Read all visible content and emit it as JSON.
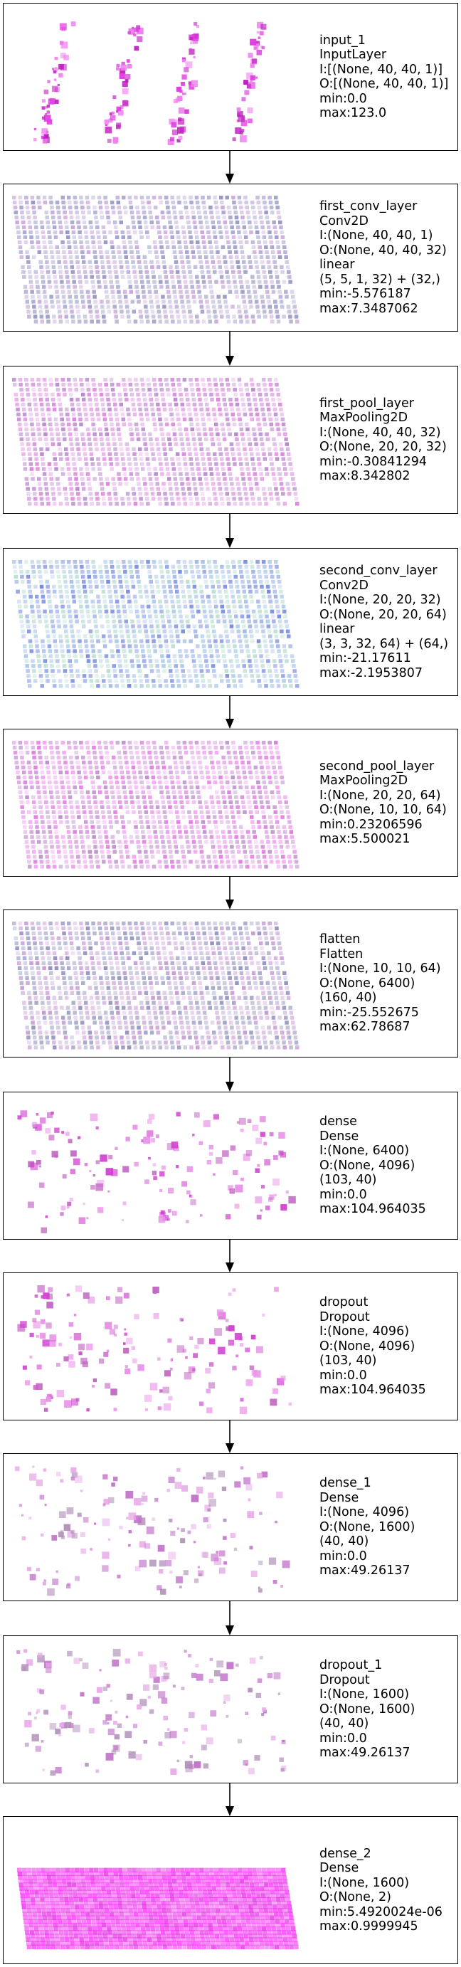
{
  "layers": [
    {
      "lines": [
        "input_1",
        "InputLayer",
        "I:[(None, 40, 40, 1)]",
        "O:[(None, 40, 40, 1)]",
        "min:0.0",
        "max:123.0"
      ],
      "viz": "sparse-strips",
      "palette": [
        "#e040e0",
        "#c020c0",
        "#f080f0"
      ]
    },
    {
      "lines": [
        "first_conv_layer",
        "Conv2D",
        "I:(None, 40, 40, 1)",
        "O:(None, 40, 40, 32)",
        "linear",
        "(5, 5, 1, 32) + (32,)",
        "min:-5.576187",
        "max:7.3487062"
      ],
      "viz": "dense-grid",
      "palette": [
        "#9a9ac8",
        "#b7a6d6",
        "#c7a0d8",
        "#8e8ec0"
      ]
    },
    {
      "lines": [
        "first_pool_layer",
        "MaxPooling2D",
        "I:(None, 40, 40, 32)",
        "O:(None, 20, 20, 32)",
        "min:-0.30841294",
        "max:8.342802"
      ],
      "viz": "dense-grid",
      "palette": [
        "#d87ad8",
        "#c58ad6",
        "#e6a8e6",
        "#b080c8"
      ]
    },
    {
      "lines": [
        "second_conv_layer",
        "Conv2D",
        "I:(None, 20, 20, 32)",
        "O:(None, 20, 20, 64)",
        "linear",
        "(3, 3, 32, 64) + (64,)",
        "min:-21.17611",
        "max:-2.1953807"
      ],
      "viz": "dense-grid",
      "palette": [
        "#a8c8e8",
        "#b8dcd0",
        "#9ab0e8",
        "#6a7fe0"
      ]
    },
    {
      "lines": [
        "second_pool_layer",
        "MaxPooling2D",
        "I:(None, 20, 20, 64)",
        "O:(None, 10, 10, 64)",
        "min:0.23206596",
        "max:5.500021"
      ],
      "viz": "dense-grid",
      "palette": [
        "#e070e0",
        "#d090d8",
        "#b888c8",
        "#f0a0f0"
      ]
    },
    {
      "lines": [
        "flatten",
        "Flatten",
        "I:(None, 10, 10, 64)",
        "O:(None, 6400)",
        "(160, 40)",
        "min:-25.552675",
        "max:62.78687"
      ],
      "viz": "dense-grid",
      "palette": [
        "#a0a0c8",
        "#c090d0",
        "#d6b0e0",
        "#8888b8"
      ]
    },
    {
      "lines": [
        "dense",
        "Dense",
        "I:(None, 6400)",
        "O:(None, 4096)",
        "(103, 40)",
        "min:0.0",
        "max:104.964035"
      ],
      "viz": "scatter",
      "palette": [
        "#d040d0",
        "#c060c0",
        "#e890e8"
      ]
    },
    {
      "lines": [
        "dropout",
        "Dropout",
        "I:(None, 4096)",
        "O:(None, 4096)",
        "(103, 40)",
        "min:0.0",
        "max:104.964035"
      ],
      "viz": "scatter",
      "palette": [
        "#d040d0",
        "#c060c0",
        "#e890e8"
      ]
    },
    {
      "lines": [
        "dense_1",
        "Dense",
        "I:(None, 4096)",
        "O:(None, 1600)",
        "(40, 40)",
        "min:0.0",
        "max:49.26137"
      ],
      "viz": "scatter",
      "palette": [
        "#c070c8",
        "#b090b8",
        "#e8a8e8"
      ]
    },
    {
      "lines": [
        "dropout_1",
        "Dropout",
        "I:(None, 1600)",
        "O:(None, 1600)",
        "(40, 40)",
        "min:0.0",
        "max:49.26137"
      ],
      "viz": "scatter",
      "palette": [
        "#c070c8",
        "#b090b8",
        "#e8a8e8"
      ]
    },
    {
      "lines": [
        "dense_2",
        "Dense",
        "I:(None, 1600)",
        "O:(None, 2)",
        "min:5.4920024e-06",
        "max:0.9999945"
      ],
      "viz": "solid",
      "palette": [
        "#ff40ff",
        "#f060f0",
        "#e838e8"
      ]
    }
  ]
}
